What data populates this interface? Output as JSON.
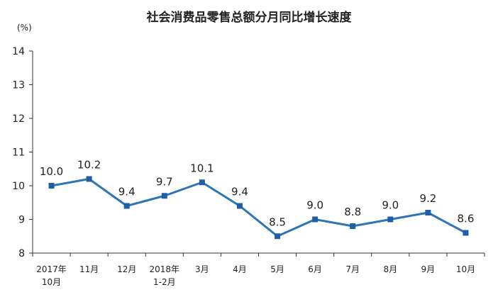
{
  "chart_data": {
    "type": "line",
    "title": "社会消费品零售总额分月同比增长速度",
    "unit_label": "(%)",
    "xlabel": "",
    "ylabel": "",
    "ylim": [
      8,
      14
    ],
    "yticks": [
      "8",
      "9",
      "10",
      "11",
      "12",
      "13",
      "14"
    ],
    "categories": [
      [
        "2017年",
        "10月"
      ],
      [
        "11月"
      ],
      [
        "12月"
      ],
      [
        "2018年",
        "1-2月"
      ],
      [
        "3月"
      ],
      [
        "4月"
      ],
      [
        "5月"
      ],
      [
        "6月"
      ],
      [
        "7月"
      ],
      [
        "8月"
      ],
      [
        "9月"
      ],
      [
        "10月"
      ]
    ],
    "values": [
      10.0,
      10.2,
      9.4,
      9.7,
      10.1,
      9.4,
      8.5,
      9.0,
      8.8,
      9.0,
      9.2,
      8.6
    ],
    "data_labels": [
      "10.0",
      "10.2",
      "9.4",
      "9.7",
      "10.1",
      "9.4",
      "8.5",
      "9.0",
      "8.8",
      "9.0",
      "9.2",
      "8.6"
    ],
    "grid": false,
    "legend": "none",
    "line_color": "#2E75B6",
    "marker_color": "#1F5FA6"
  }
}
